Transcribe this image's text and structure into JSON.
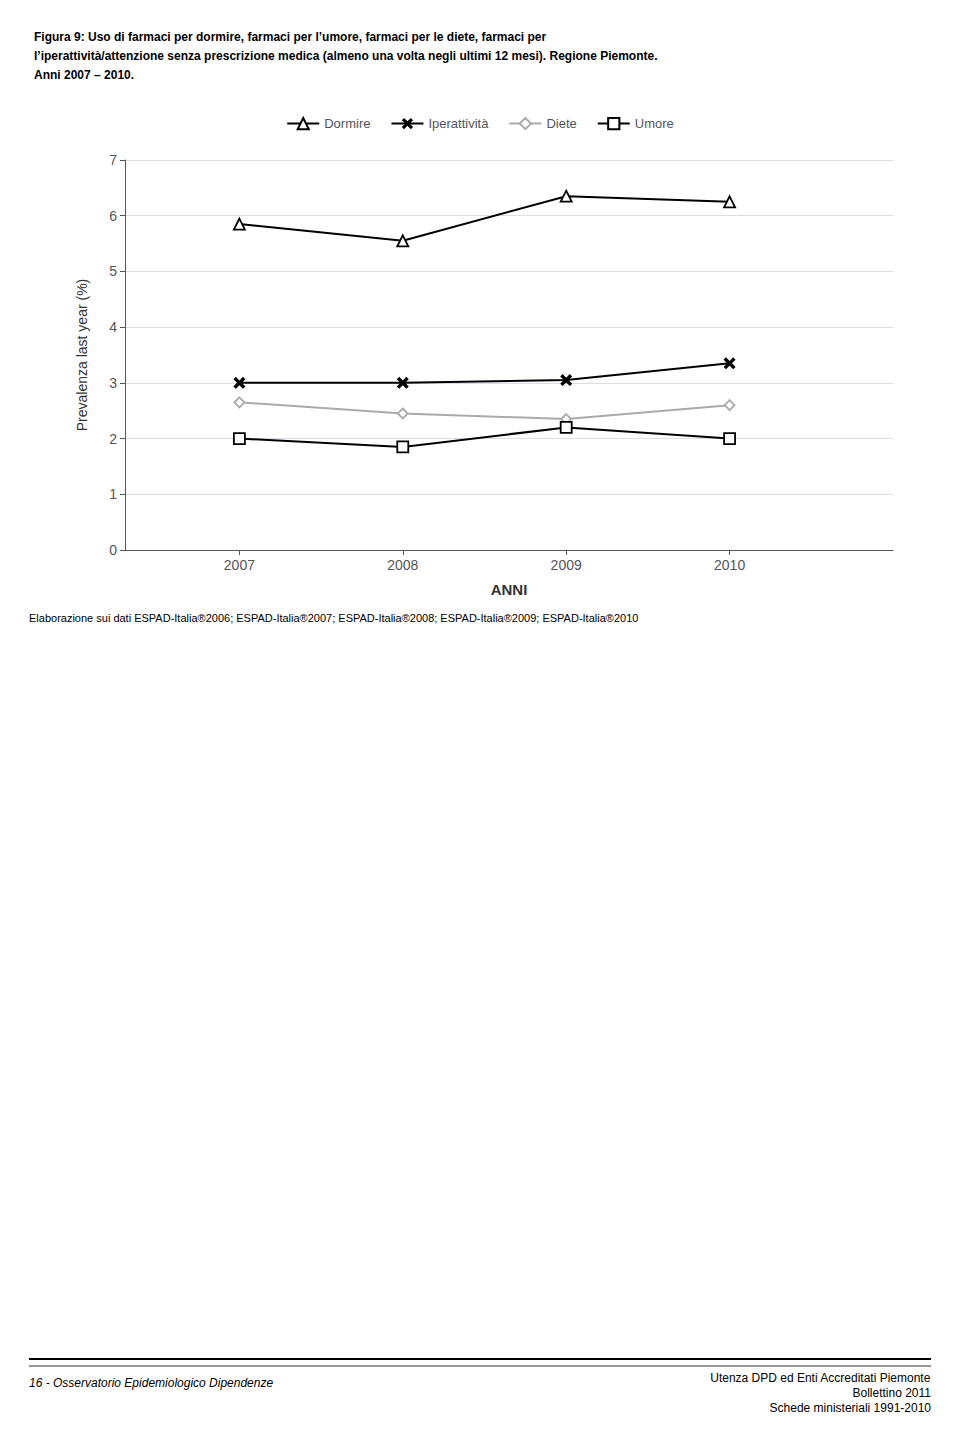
{
  "chart_data": {
    "type": "line",
    "title": "Figura 9: Uso di farmaci per dormire, farmaci per l’umore, farmaci per le diete, farmaci per\nl’iperattività/attenzione senza prescrizione medica (almeno una volta negli ultimi 12 mesi). Regione Piemonte.\nAnni 2007 – 2010.",
    "x_label": "ANNI",
    "y_label": "Prevalenza last year (%)",
    "x": [
      2007,
      2008,
      2009,
      2010
    ],
    "series": [
      {
        "name": "Dormire",
        "color": "#000000",
        "marker": "triangle",
        "values": [
          5.85,
          5.55,
          6.35,
          6.25
        ]
      },
      {
        "name": "Iperattività",
        "color": "#000000",
        "marker": "x",
        "values": [
          3.0,
          3.0,
          3.05,
          3.35
        ]
      },
      {
        "name": "Diete",
        "color": "#aaaaaa",
        "marker": "diamond",
        "values": [
          2.65,
          2.45,
          2.35,
          2.6
        ]
      },
      {
        "name": "Umore",
        "color": "#000000",
        "marker": "square",
        "values": [
          2.0,
          1.85,
          2.2,
          2.0
        ]
      }
    ],
    "xlim": [
      2006.3,
      2011.0
    ],
    "xticks": [
      2007,
      2008,
      2009,
      2010
    ],
    "ylim": [
      0,
      7
    ],
    "yticks": [
      0,
      1,
      2,
      3,
      4,
      5,
      6,
      7
    ],
    "grid": true,
    "legend": "top",
    "annotations": [
      "Elaborazione sui dati ESPAD-Italia®2006; ESPAD-Italia®2007; ESPAD-Italia®2008; ESPAD-Italia®2009; ESPAD-Italia®2010",
      "16 - Osservatorio Epidemiologico Dipendenze",
      "Utenza DPD ed Enti Accreditati Piemonte",
      "Bollettino 2011",
      "Schede ministeriali 1991-2010"
    ]
  }
}
